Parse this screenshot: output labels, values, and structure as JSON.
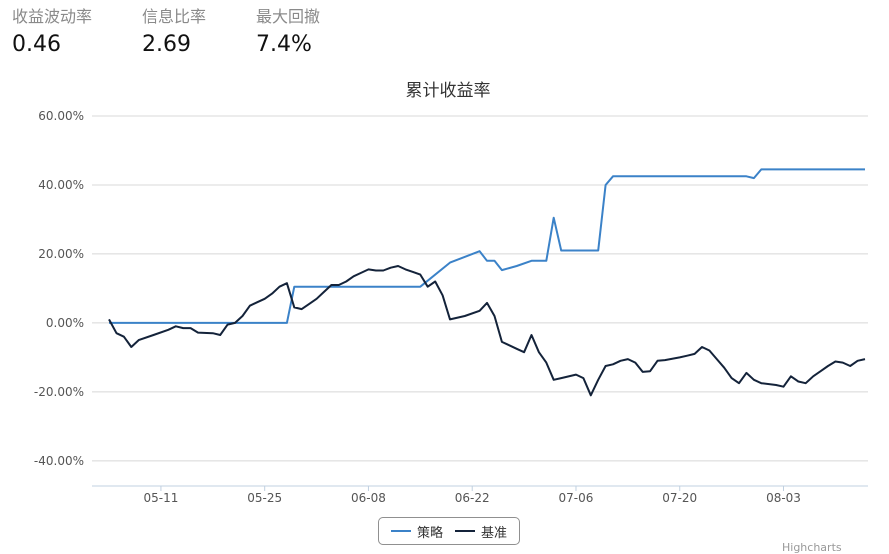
{
  "stats": [
    {
      "label": "收益波动率",
      "value": "0.46"
    },
    {
      "label": "信息比率",
      "value": "2.69"
    },
    {
      "label": "最大回撤",
      "value": "7.4%"
    }
  ],
  "credit": "Highcharts",
  "colors": {
    "strategy": "#3b82c8",
    "benchmark": "#14233a",
    "grid": "#d8d8d8",
    "axis": "#c0d0e0"
  },
  "chart_data": {
    "type": "line",
    "title": "累计收益率",
    "xlabel": "",
    "ylabel": "",
    "ylim": [
      -40,
      60
    ],
    "grid": true,
    "legend_position": "bottom-center",
    "y_ticks": [
      "-40.00%",
      "-20.00%",
      "0.00%",
      "20.00%",
      "40.00%",
      "60.00%"
    ],
    "x_ticks": [
      "05-11",
      "05-25",
      "06-08",
      "06-22",
      "07-06",
      "07-20",
      "08-03"
    ],
    "series": [
      {
        "name": "策略",
        "color": "#3b82c8",
        "points": [
          [
            0,
            0
          ],
          [
            12,
            0
          ],
          [
            24,
            0
          ],
          [
            25,
            10.5
          ],
          [
            30,
            10.5
          ],
          [
            37,
            10.5
          ],
          [
            42,
            10.5
          ],
          [
            46,
            17.5
          ],
          [
            50,
            20.8
          ],
          [
            51,
            18
          ],
          [
            52,
            18
          ],
          [
            53,
            15.3
          ],
          [
            55,
            16.5
          ],
          [
            57,
            18
          ],
          [
            59,
            18
          ],
          [
            60,
            30.5
          ],
          [
            61,
            21
          ],
          [
            66,
            21
          ],
          [
            67,
            40
          ],
          [
            68,
            42.5
          ],
          [
            75,
            42.5
          ],
          [
            86,
            42.5
          ],
          [
            87,
            42
          ],
          [
            88,
            44.5
          ],
          [
            102,
            44.5
          ]
        ]
      },
      {
        "name": "基准",
        "color": "#14233a",
        "points": [
          [
            0,
            1
          ],
          [
            1,
            -3
          ],
          [
            2,
            -4
          ],
          [
            3,
            -7
          ],
          [
            4,
            -5
          ],
          [
            6,
            -3.5
          ],
          [
            8,
            -2
          ],
          [
            9,
            -1
          ],
          [
            10,
            -1.5
          ],
          [
            11,
            -1.5
          ],
          [
            12,
            -2.8
          ],
          [
            14,
            -3
          ],
          [
            15,
            -3.5
          ],
          [
            16,
            -0.5
          ],
          [
            17,
            0
          ],
          [
            18,
            2
          ],
          [
            19,
            5
          ],
          [
            20,
            6
          ],
          [
            21,
            7
          ],
          [
            22,
            8.5
          ],
          [
            23,
            10.5
          ],
          [
            24,
            11.5
          ],
          [
            25,
            4.5
          ],
          [
            26,
            4
          ],
          [
            27,
            5.5
          ],
          [
            28,
            7
          ],
          [
            29,
            9
          ],
          [
            30,
            11
          ],
          [
            31,
            11
          ],
          [
            32,
            12
          ],
          [
            33,
            13.5
          ],
          [
            34,
            14.5
          ],
          [
            35,
            15.5
          ],
          [
            36,
            15.2
          ],
          [
            37,
            15.2
          ],
          [
            38,
            16
          ],
          [
            39,
            16.5
          ],
          [
            40,
            15.5
          ],
          [
            41,
            14.8
          ],
          [
            42,
            14
          ],
          [
            43,
            10.5
          ],
          [
            44,
            12
          ],
          [
            45,
            8
          ],
          [
            46,
            1
          ],
          [
            48,
            2
          ],
          [
            50,
            3.5
          ],
          [
            51,
            5.8
          ],
          [
            52,
            2
          ],
          [
            53,
            -5.5
          ],
          [
            54,
            -6.5
          ],
          [
            55,
            -7.5
          ],
          [
            56,
            -8.5
          ],
          [
            57,
            -3.5
          ],
          [
            58,
            -8.5
          ],
          [
            59,
            -11.5
          ],
          [
            60,
            -16.5
          ],
          [
            61,
            -16
          ],
          [
            63,
            -15
          ],
          [
            64,
            -16
          ],
          [
            65,
            -21
          ],
          [
            66,
            -16.5
          ],
          [
            67,
            -12.5
          ],
          [
            68,
            -12
          ],
          [
            69,
            -11
          ],
          [
            70,
            -10.5
          ],
          [
            71,
            -11.5
          ],
          [
            72,
            -14.2
          ],
          [
            73,
            -14
          ],
          [
            74,
            -11
          ],
          [
            75,
            -10.8
          ],
          [
            77,
            -10
          ],
          [
            78,
            -9.5
          ],
          [
            79,
            -9
          ],
          [
            80,
            -7
          ],
          [
            81,
            -8
          ],
          [
            82,
            -10.5
          ],
          [
            83,
            -13
          ],
          [
            84,
            -16
          ],
          [
            85,
            -17.5
          ],
          [
            86,
            -14.5
          ],
          [
            87,
            -16.5
          ],
          [
            88,
            -17.5
          ],
          [
            90,
            -18
          ],
          [
            91,
            -18.5
          ],
          [
            92,
            -15.5
          ],
          [
            93,
            -17
          ],
          [
            94,
            -17.5
          ],
          [
            95,
            -15.5
          ],
          [
            96,
            -14
          ],
          [
            97,
            -12.5
          ],
          [
            98,
            -11.2
          ],
          [
            99,
            -11.5
          ],
          [
            100,
            -12.5
          ],
          [
            101,
            -11
          ],
          [
            102,
            -10.5
          ]
        ]
      }
    ],
    "x_tick_index": [
      7,
      21,
      35,
      49,
      63,
      77,
      91
    ]
  }
}
